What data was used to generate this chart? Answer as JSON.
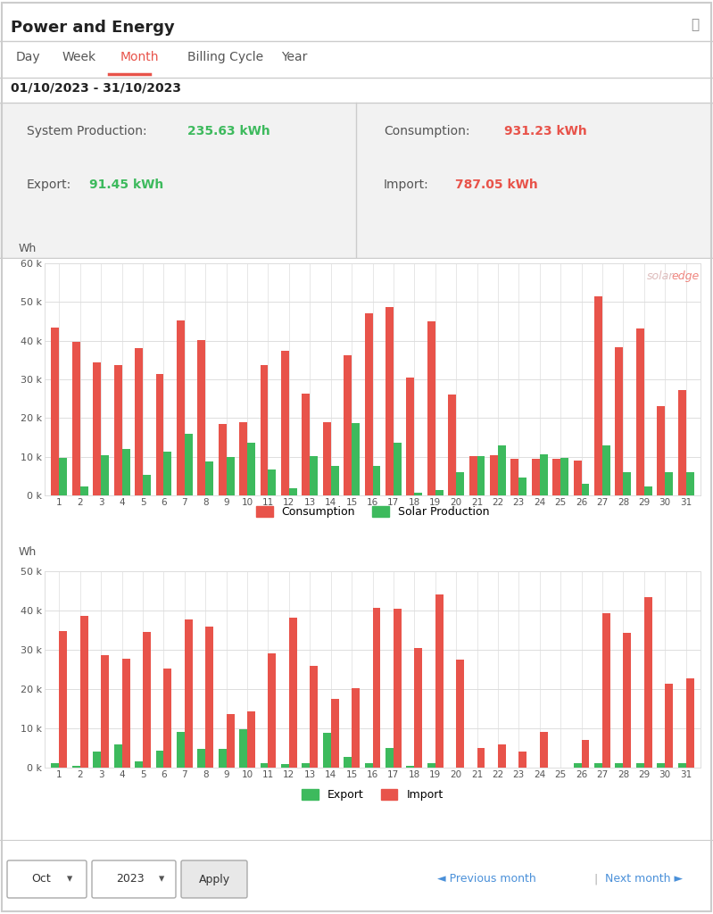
{
  "title": "Power and Energy",
  "date_range": "01/10/2023 - 31/10/2023",
  "nav_items": [
    "Day",
    "Week",
    "Month",
    "Billing Cycle",
    "Year"
  ],
  "active_nav": "Month",
  "system_production": "235.63 kWh",
  "consumption_total": "931.23 kWh",
  "export_total": "91.45 kWh",
  "import_total": "787.05 kWh",
  "days": [
    1,
    2,
    3,
    4,
    5,
    6,
    7,
    8,
    9,
    10,
    11,
    12,
    13,
    14,
    15,
    16,
    17,
    18,
    19,
    20,
    21,
    22,
    23,
    24,
    25,
    26,
    27,
    28,
    29,
    30,
    31
  ],
  "consumption": [
    43500,
    39700,
    34300,
    33700,
    38000,
    31500,
    45200,
    40200,
    18500,
    19000,
    33800,
    37300,
    26300,
    19000,
    36200,
    47000,
    48800,
    30400,
    45000,
    26000,
    10200,
    10500,
    9500,
    9500,
    9500,
    9100,
    51500,
    38300,
    43200,
    23000,
    27200
  ],
  "solar_production": [
    9800,
    2200,
    10500,
    12100,
    5400,
    11200,
    16000,
    8800,
    10000,
    13700,
    6800,
    1800,
    10100,
    7600,
    18600,
    7600,
    13700,
    800,
    1300,
    6100,
    10200,
    12900,
    4700,
    10700,
    9700,
    3100,
    12900,
    5900,
    2200,
    6100,
    6000
  ],
  "export": [
    1200,
    500,
    4200,
    6000,
    1600,
    4300,
    9100,
    4800,
    4800,
    9700,
    1200,
    800,
    1200,
    8800,
    2700,
    1100,
    5100,
    500,
    1200,
    0,
    0,
    0,
    0,
    0,
    0,
    1200,
    1200,
    1100,
    1200,
    1200,
    1200
  ],
  "import": [
    34700,
    38700,
    28600,
    27800,
    34600,
    25300,
    37800,
    35800,
    13600,
    14400,
    29200,
    38200,
    26000,
    17400,
    20300,
    40600,
    40500,
    30400,
    44200,
    27500,
    5100,
    5900,
    4200,
    9000,
    0,
    7100,
    39400,
    34300,
    43300,
    21400,
    22700
  ],
  "consumption_color": "#e8534a",
  "solar_color": "#3dba5d",
  "export_color": "#3dba5d",
  "import_color": "#e8534a",
  "bg_color": "#f5f5f5",
  "chart_bg": "#ffffff",
  "grid_color": "#dddddd",
  "chart1_ylim": [
    0,
    60000
  ],
  "chart2_ylim": [
    0,
    50000
  ],
  "yticks1": [
    0,
    10000,
    20000,
    30000,
    40000,
    50000,
    60000
  ],
  "yticks2": [
    0,
    10000,
    20000,
    30000,
    40000,
    50000
  ],
  "ytick_labels1": [
    "0 k",
    "10 k",
    "20 k",
    "30 k",
    "40 k",
    "50 k",
    "60 k"
  ],
  "ytick_labels2": [
    "0 k",
    "10 k",
    "20 k",
    "30 k",
    "40 k",
    "50 k"
  ]
}
